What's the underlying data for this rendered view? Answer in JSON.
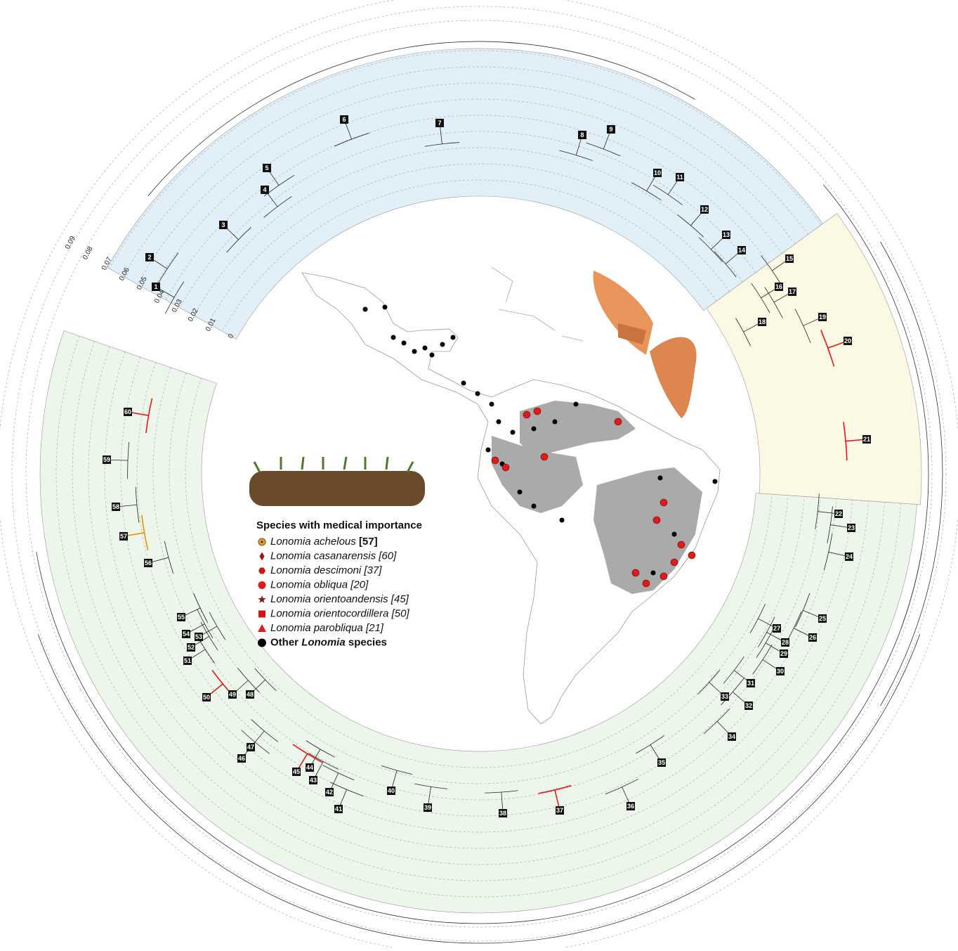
{
  "scale_labels": [
    "0",
    "0.01",
    "0.02",
    "0.03",
    "0.04",
    "0.05",
    "0.06",
    "0.07",
    "0.08",
    "0.09"
  ],
  "node_labels": [
    "1",
    "2",
    "3",
    "4",
    "5",
    "6",
    "7",
    "8",
    "9",
    "10",
    "11",
    "12",
    "13",
    "14",
    "15",
    "16",
    "17",
    "18",
    "19",
    "20",
    "21",
    "22",
    "23",
    "24",
    "25",
    "26",
    "27",
    "28",
    "29",
    "30",
    "31",
    "32",
    "33",
    "34",
    "35",
    "36",
    "37",
    "38",
    "39",
    "40",
    "41",
    "42",
    "43",
    "44",
    "45",
    "46",
    "47",
    "48",
    "49",
    "50",
    "51",
    "52",
    "53",
    "54",
    "55",
    "56",
    "57",
    "58",
    "59",
    "60"
  ],
  "legend": {
    "title": "Species with medical importance",
    "entries": [
      {
        "name": "Lonomia achelous",
        "tag": "[57]"
      },
      {
        "name": "Lonomia casanarensis",
        "tag": "[60]"
      },
      {
        "name": "Lonomia descimoni",
        "tag": "[37]"
      },
      {
        "name": "Lonomia obliqua",
        "tag": "[20]"
      },
      {
        "name": "Lonomia orientoandensis",
        "tag": "[45]"
      },
      {
        "name": "Lonomia orientocordillera",
        "tag": "[50]"
      },
      {
        "name": "Lonomia parobliqua",
        "tag": "[21]"
      }
    ],
    "other": [
      "Other",
      "Lonomia",
      "species"
    ]
  }
}
